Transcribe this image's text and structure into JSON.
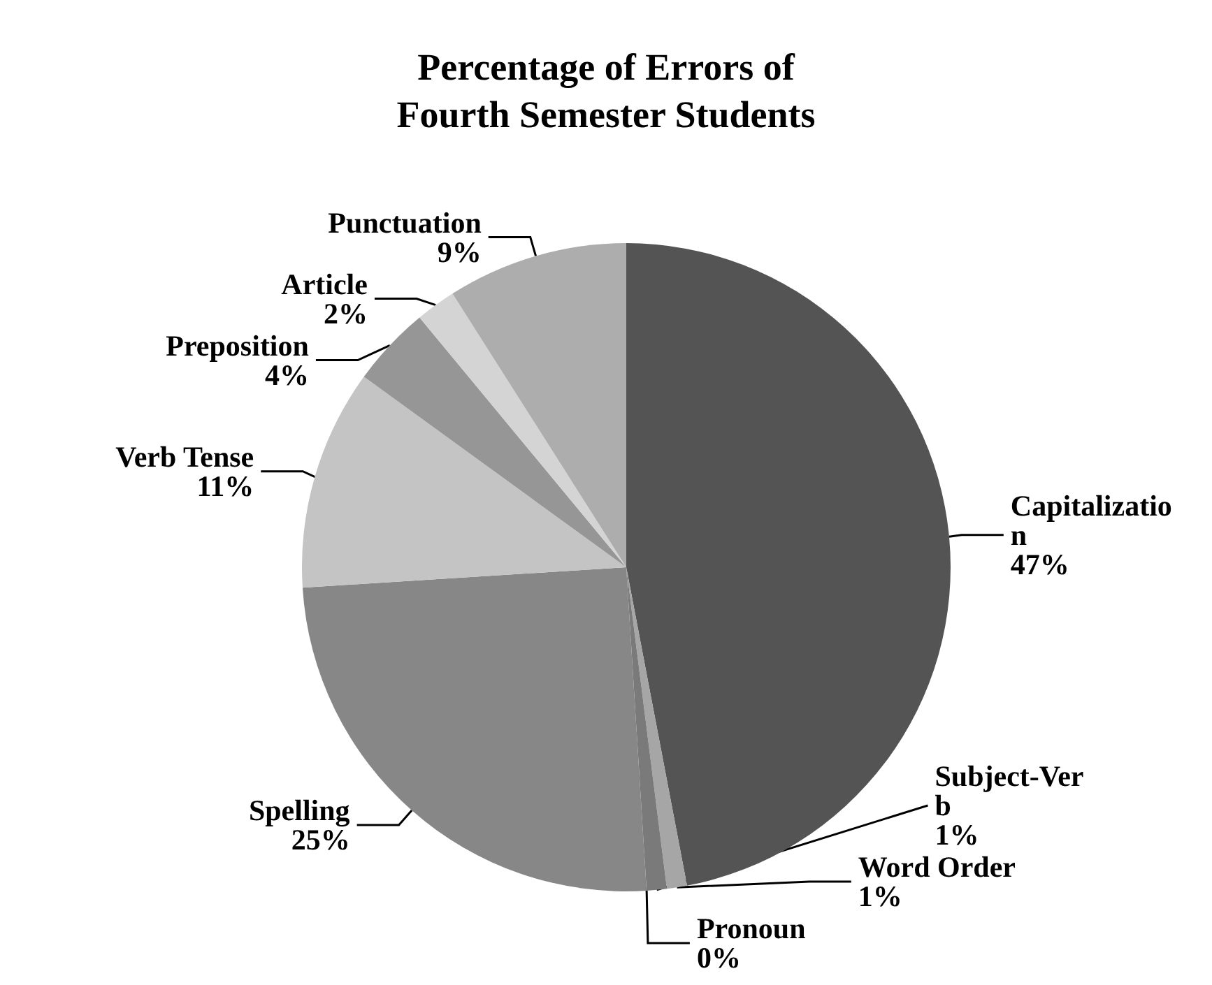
{
  "chart_data": {
    "type": "pie",
    "title": "Percentage of Errors of\nFourth Semester Students",
    "categories": [
      "Capitalization",
      "Word Order",
      "Subject-Verb",
      "Pronoun",
      "Spelling",
      "Verb Tense",
      "Preposition",
      "Article",
      "Punctuation"
    ],
    "values": [
      47,
      1,
      1,
      0,
      25,
      11,
      4,
      2,
      9
    ],
    "value_labels": [
      "47%",
      "1%",
      "1%",
      "0%",
      "25%",
      "11%",
      "4%",
      "2%",
      "9%"
    ],
    "colors": [
      "#545454",
      "#a6a6a6",
      "#7a7a7a",
      "#3a3a3a",
      "#878787",
      "#c4c4c4",
      "#969696",
      "#d4d4d4",
      "#adadad"
    ]
  }
}
